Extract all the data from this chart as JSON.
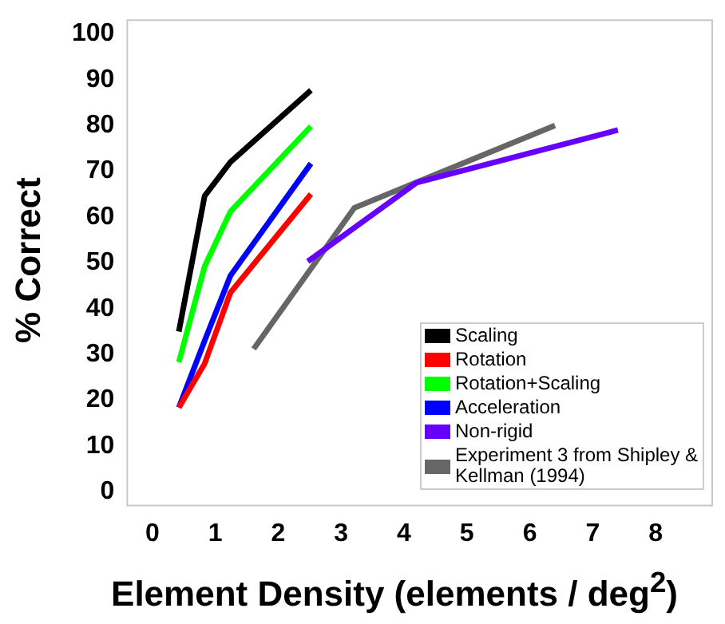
{
  "chart_data": {
    "type": "line",
    "xlabel": "Element Density (elements / deg$^{2}$)",
    "ylabel": "% Correct",
    "xlim": [
      -0.4,
      8.9
    ],
    "xticks": [
      0,
      1,
      2,
      3,
      4,
      5,
      6,
      7,
      8
    ],
    "ylim": [
      -3,
      103
    ],
    "yticks": [
      0,
      10,
      20,
      30,
      40,
      50,
      60,
      70,
      80,
      90,
      100
    ],
    "grid": false,
    "legend": "bottom right",
    "marker": "none",
    "line_style": "solid",
    "series": [
      {
        "name": "Scaling",
        "color": "#000000",
        "x": [
          0.42,
          0.83,
          1.24,
          2.52
        ],
        "values": [
          35,
          64.6,
          72,
          87.7
        ]
      },
      {
        "name": "Rotation",
        "color": "#ff0000",
        "x": [
          0.42,
          0.83,
          1.24,
          2.52
        ],
        "values": [
          18.4,
          28,
          43.5,
          65
        ]
      },
      {
        "name": "Rotation+Scaling",
        "color": "#00ff00",
        "x": [
          0.42,
          0.83,
          1.24,
          2.52
        ],
        "values": [
          28.3,
          49.2,
          61.2,
          79.8
        ]
      },
      {
        "name": "Acceleration",
        "color": "#0000ff",
        "x": [
          0.42,
          0.83,
          1.24,
          2.52
        ],
        "values": [
          18.4,
          33,
          47.2,
          71.7
        ]
      },
      {
        "name": "Non-rigid",
        "color": "#6600ff",
        "x": [
          2.47,
          4.2,
          7.4
        ],
        "values": [
          50.3,
          67.5,
          79
        ]
      },
      {
        "name": "Experiment 3 from Shipley & Kellman (1994)",
        "color": "#666666",
        "x": [
          1.61,
          3.21,
          6.4
        ],
        "values": [
          31.2,
          62,
          80
        ]
      }
    ]
  }
}
